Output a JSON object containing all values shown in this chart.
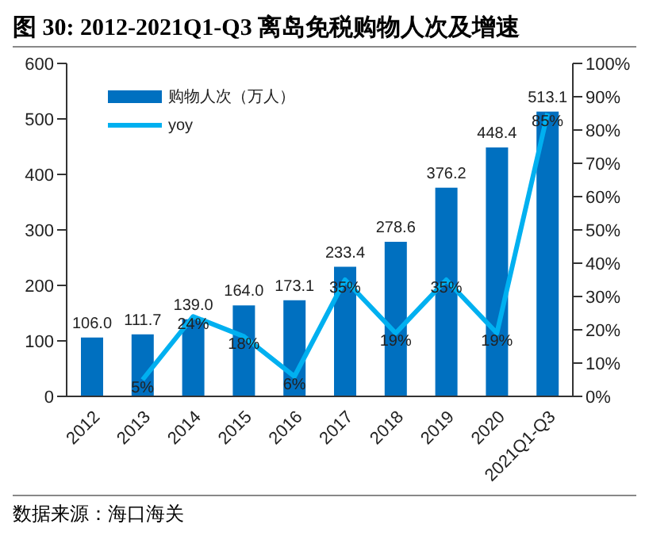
{
  "chart_data": {
    "type": "bar",
    "title": "图 30:  2012-2021Q1-Q3 离岛免税购物人次及增速",
    "annotations": [
      "数据来源：海口海关"
    ],
    "categories": [
      "2012",
      "2013",
      "2014",
      "2015",
      "2016",
      "2017",
      "2018",
      "2019",
      "2020",
      "2021Q1-Q3"
    ],
    "series": [
      {
        "name": "购物人次（万人）",
        "color": "#0070c0",
        "values": [
          106.0,
          111.7,
          139.0,
          164.0,
          173.1,
          233.4,
          278.6,
          376.2,
          448.4,
          513.1
        ],
        "value_labels": [
          "106.0",
          "111.7",
          "139.0",
          "164.0",
          "173.1",
          "233.4",
          "278.6",
          "376.2",
          "448.4",
          "513.1"
        ]
      },
      {
        "name": "yoy",
        "type": "line",
        "axis": "y2",
        "color": "#00b0f0",
        "values": [
          null,
          5,
          24,
          18,
          6,
          35,
          19,
          35,
          19,
          85
        ],
        "value_labels": [
          null,
          "5%",
          "24%",
          "18%",
          "6%",
          "35%",
          "19%",
          "35%",
          "19%",
          "85%"
        ]
      }
    ],
    "ylim": [
      0,
      600
    ],
    "yticks": [
      0,
      100,
      200,
      300,
      400,
      500,
      600
    ],
    "y2lim": [
      0,
      100
    ],
    "y2ticks": [
      {
        "value": 0,
        "label": "0%"
      },
      {
        "value": 10,
        "label": "10%"
      },
      {
        "value": 20,
        "label": "20%"
      },
      {
        "value": 30,
        "label": "30%"
      },
      {
        "value": 40,
        "label": "40%"
      },
      {
        "value": 50,
        "label": "50%"
      },
      {
        "value": 60,
        "label": "60%"
      },
      {
        "value": 70,
        "label": "70%"
      },
      {
        "value": 80,
        "label": "80%"
      },
      {
        "value": 90,
        "label": "90%"
      },
      {
        "value": 100,
        "label": "100%"
      }
    ],
    "grid": false,
    "legend": "top left",
    "marker": "none"
  }
}
